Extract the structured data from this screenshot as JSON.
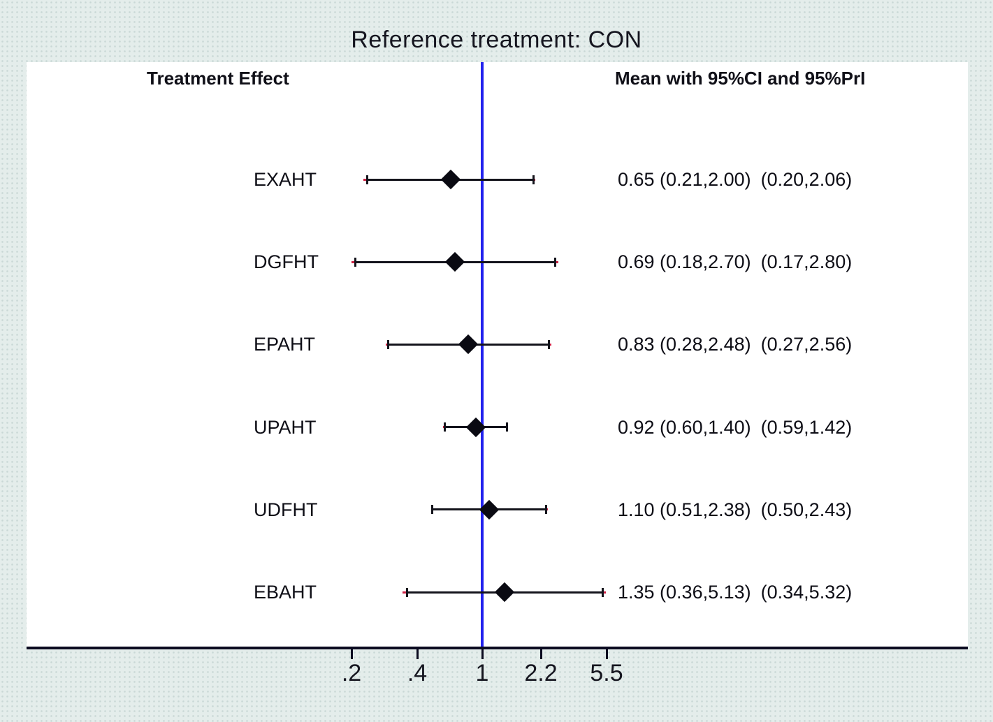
{
  "title": "Reference treatment: CON",
  "chart_data": {
    "type": "forest",
    "title": "Reference treatment: CON",
    "left_column_header": "Treatment Effect",
    "right_column_header": "Mean with 95%CI and 95%PrI",
    "x_scale": "log",
    "reference_line_value": 1,
    "x_ticks": [
      {
        "label": ".2",
        "value": 0.2
      },
      {
        "label": ".4",
        "value": 0.4
      },
      {
        "label": "1",
        "value": 1
      },
      {
        "label": "2.2",
        "value": 2.2
      },
      {
        "label": "5.5",
        "value": 5.5
      }
    ],
    "rows": [
      {
        "label": "EXAHT",
        "mean": 0.65,
        "ci": [
          0.21,
          2.0
        ],
        "pri": [
          0.2,
          2.06
        ],
        "display_est_ci": "0.65 (0.21,2.00)",
        "display_pri": "(0.20,2.06)"
      },
      {
        "label": "DGFHT",
        "mean": 0.69,
        "ci": [
          0.18,
          2.7
        ],
        "pri": [
          0.17,
          2.8
        ],
        "display_est_ci": "0.69 (0.18,2.70)",
        "display_pri": "(0.17,2.80)"
      },
      {
        "label": "EPAHT",
        "mean": 0.83,
        "ci": [
          0.28,
          2.48
        ],
        "pri": [
          0.27,
          2.56
        ],
        "display_est_ci": "0.83 (0.28,2.48)",
        "display_pri": "(0.27,2.56)"
      },
      {
        "label": "UPAHT",
        "mean": 0.92,
        "ci": [
          0.6,
          1.4
        ],
        "pri": [
          0.59,
          1.42
        ],
        "display_est_ci": "0.92 (0.60,1.40)",
        "display_pri": "(0.59,1.42)"
      },
      {
        "label": "UDFHT",
        "mean": 1.1,
        "ci": [
          0.51,
          2.38
        ],
        "pri": [
          0.5,
          2.43
        ],
        "display_est_ci": "1.10 (0.51,2.38)",
        "display_pri": "(0.50,2.43)"
      },
      {
        "label": "EBAHT",
        "mean": 1.35,
        "ci": [
          0.36,
          5.13
        ],
        "pri": [
          0.34,
          5.32
        ],
        "display_est_ci": "1.35 (0.36,5.13)",
        "display_pri": "(0.34,5.32)"
      }
    ],
    "colors": {
      "reference_line": "#2222ee",
      "ci_line": "#14141c",
      "pri_line": "#cc2244",
      "marker": "#0a0a12",
      "axis": "#0b0b20",
      "text": "#0e0e16"
    }
  }
}
